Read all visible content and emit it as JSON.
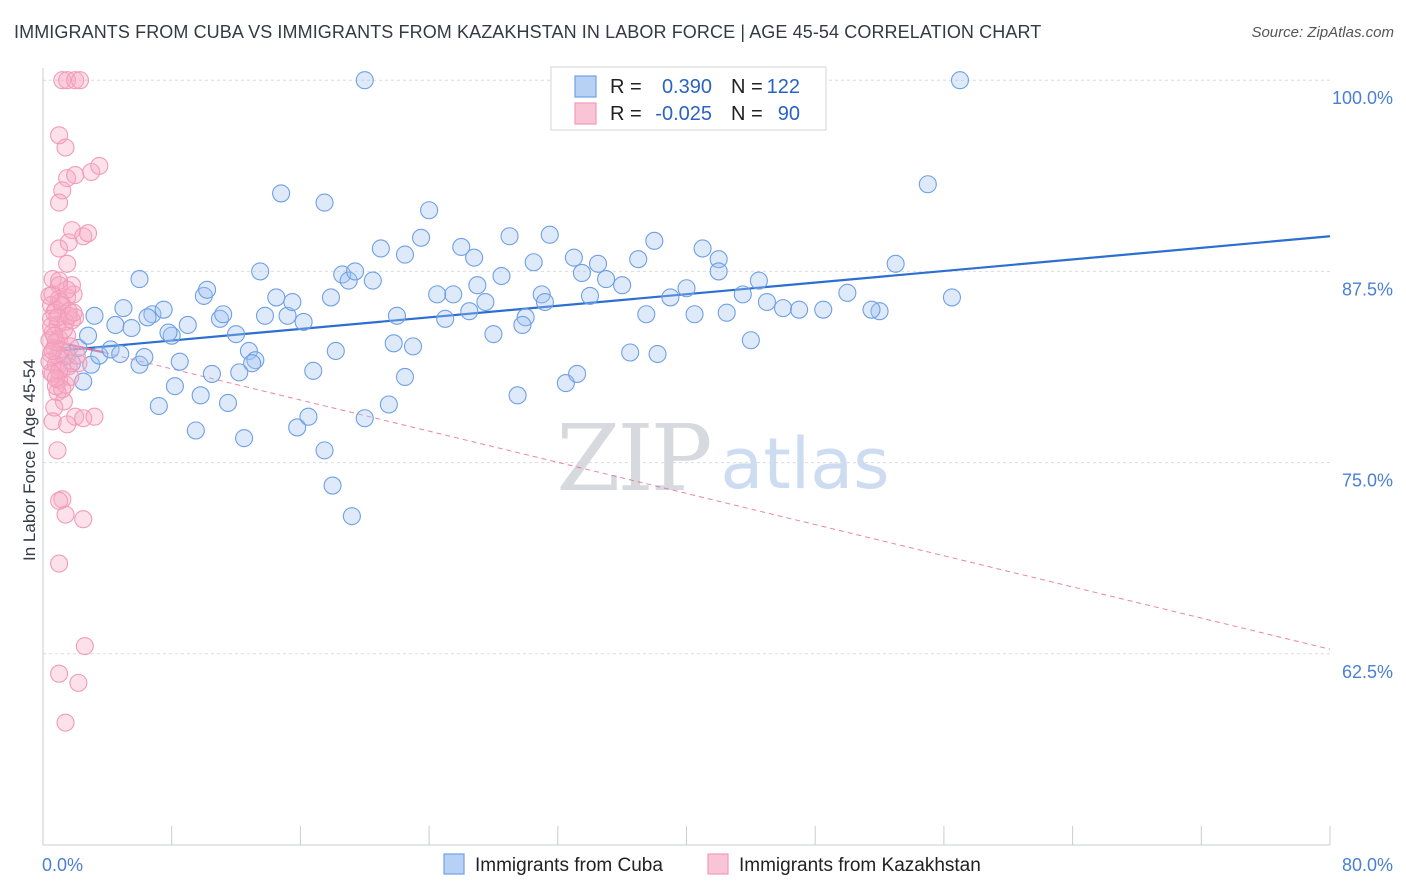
{
  "title": "IMMIGRANTS FROM CUBA VS IMMIGRANTS FROM KAZAKHSTAN IN LABOR FORCE | AGE 45-54 CORRELATION CHART",
  "source": "Source: ZipAtlas.com",
  "watermark": {
    "zip": "ZIP",
    "atlas": "atlas"
  },
  "chart_data": {
    "type": "scatter",
    "title": "IMMIGRANTS FROM CUBA VS IMMIGRANTS FROM KAZAKHSTAN IN LABOR FORCE | AGE 45-54 CORRELATION CHART",
    "xlabel": "",
    "ylabel": "In Labor Force | Age 45-54",
    "xlim": [
      0,
      80
    ],
    "ylim": [
      50,
      100.8
    ],
    "x_tick_labels": [
      "0.0%",
      "80.0%"
    ],
    "y_ticks": [
      62.5,
      75.0,
      87.5,
      100.0
    ],
    "y_tick_labels": [
      "62.5%",
      "75.0%",
      "87.5%",
      "100.0%"
    ],
    "legend": {
      "position": "top-center",
      "entries": [
        {
          "r_label": "R =",
          "r_value": "0.390",
          "n_label": "N =",
          "n_value": "122"
        },
        {
          "r_label": "R =",
          "r_value": "-0.025",
          "n_label": "N =",
          "n_value": "90"
        }
      ]
    },
    "series": [
      {
        "name": "Immigrants from Cuba",
        "color": "#6fa0e6",
        "line_color": "#2c6fd1",
        "trend": {
          "x": [
            0.8,
            80.0
          ],
          "y": [
            82.3,
            89.8
          ]
        },
        "points": [
          [
            1.5,
            82.0
          ],
          [
            2.2,
            82.5
          ],
          [
            1.8,
            81.5
          ],
          [
            3.0,
            81.4
          ],
          [
            2.5,
            80.3
          ],
          [
            3.2,
            84.6
          ],
          [
            3.5,
            82.0
          ],
          [
            4.2,
            82.4
          ],
          [
            4.5,
            84.0
          ],
          [
            5.0,
            85.1
          ],
          [
            5.5,
            83.8
          ],
          [
            6.0,
            81.4
          ],
          [
            6.3,
            81.9
          ],
          [
            6.8,
            84.7
          ],
          [
            7.2,
            78.7
          ],
          [
            7.5,
            85.0
          ],
          [
            8.0,
            83.3
          ],
          [
            8.5,
            81.6
          ],
          [
            9.0,
            84.0
          ],
          [
            9.5,
            77.1
          ],
          [
            10.0,
            85.9
          ],
          [
            10.5,
            80.8
          ],
          [
            11.0,
            84.4
          ],
          [
            11.5,
            78.9
          ],
          [
            12.0,
            83.4
          ],
          [
            12.5,
            76.6
          ],
          [
            12.8,
            82.3
          ],
          [
            13.2,
            81.7
          ],
          [
            13.8,
            84.6
          ],
          [
            14.5,
            85.8
          ],
          [
            15.2,
            84.6
          ],
          [
            15.8,
            77.3
          ],
          [
            16.2,
            84.2
          ],
          [
            16.8,
            81.0
          ],
          [
            17.5,
            75.8
          ],
          [
            17.9,
            85.8
          ],
          [
            18.2,
            82.3
          ],
          [
            18.6,
            87.3
          ],
          [
            19.0,
            86.9
          ],
          [
            19.4,
            87.5
          ],
          [
            20.0,
            77.9
          ],
          [
            20.5,
            86.9
          ],
          [
            21.0,
            89.0
          ],
          [
            21.5,
            78.8
          ],
          [
            22.0,
            84.6
          ],
          [
            22.5,
            80.6
          ],
          [
            23.0,
            82.6
          ],
          [
            23.5,
            89.7
          ],
          [
            24.0,
            91.5
          ],
          [
            25.0,
            84.4
          ],
          [
            25.5,
            86.0
          ],
          [
            26.0,
            89.1
          ],
          [
            26.8,
            88.4
          ],
          [
            27.5,
            85.5
          ],
          [
            28.0,
            83.4
          ],
          [
            28.5,
            87.2
          ],
          [
            29.0,
            89.8
          ],
          [
            29.5,
            79.4
          ],
          [
            30.5,
            88.1
          ],
          [
            31.0,
            86.0
          ],
          [
            31.5,
            89.9
          ],
          [
            32.5,
            80.2
          ],
          [
            33.0,
            88.4
          ],
          [
            33.5,
            87.4
          ],
          [
            34.0,
            85.9
          ],
          [
            34.5,
            88.0
          ],
          [
            35.0,
            87.0
          ],
          [
            36.0,
            86.6
          ],
          [
            37.0,
            88.3
          ],
          [
            37.5,
            84.7
          ],
          [
            38.2,
            82.1
          ],
          [
            39.0,
            85.8
          ],
          [
            40.0,
            86.4
          ],
          [
            40.5,
            84.7
          ],
          [
            41.0,
            89.0
          ],
          [
            42.0,
            88.3
          ],
          [
            42.5,
            84.8
          ],
          [
            43.5,
            86.0
          ],
          [
            44.5,
            86.9
          ],
          [
            46.0,
            85.1
          ],
          [
            47.0,
            85.0
          ],
          [
            50.0,
            86.1
          ],
          [
            52.0,
            84.9
          ],
          [
            56.5,
            85.8
          ],
          [
            30.0,
            84.5
          ],
          [
            20.0,
            100.0
          ],
          [
            57.0,
            100.0
          ],
          [
            55.0,
            93.2
          ],
          [
            14.8,
            92.6
          ],
          [
            17.5,
            92.0
          ],
          [
            6.5,
            84.5
          ],
          [
            8.2,
            80.0
          ],
          [
            11.2,
            84.7
          ],
          [
            13.0,
            81.5
          ],
          [
            15.5,
            85.5
          ],
          [
            16.5,
            78.0
          ],
          [
            18.0,
            73.5
          ],
          [
            19.2,
            71.5
          ],
          [
            21.8,
            82.8
          ],
          [
            24.5,
            86.0
          ],
          [
            27.0,
            86.6
          ],
          [
            29.8,
            84.0
          ],
          [
            33.2,
            80.8
          ],
          [
            36.5,
            82.2
          ],
          [
            44.0,
            83.0
          ],
          [
            48.5,
            85.0
          ],
          [
            51.5,
            85.0
          ],
          [
            53.0,
            88.0
          ],
          [
            6.0,
            87.0
          ],
          [
            10.2,
            86.3
          ],
          [
            13.5,
            87.5
          ],
          [
            22.5,
            88.6
          ],
          [
            26.5,
            84.9
          ],
          [
            31.2,
            85.5
          ],
          [
            38.0,
            89.5
          ],
          [
            42.0,
            87.5
          ],
          [
            45.0,
            85.5
          ],
          [
            2.8,
            83.3
          ],
          [
            4.8,
            82.1
          ],
          [
            7.8,
            83.5
          ],
          [
            9.8,
            79.4
          ],
          [
            12.2,
            80.9
          ]
        ]
      },
      {
        "name": "Immigrants from Kazakhstan",
        "color": "#f29bb8",
        "line_color": "#e8668f",
        "trend": {
          "x": [
            0.4,
            3.8
          ],
          "y": [
            83.0,
            82.2
          ]
        },
        "trend_extension": {
          "x": [
            3.8,
            80.0
          ],
          "y": [
            82.2,
            62.8
          ]
        },
        "points": [
          [
            1.2,
            100.0
          ],
          [
            1.5,
            100.0
          ],
          [
            2.0,
            100.0
          ],
          [
            2.3,
            100.0
          ],
          [
            1.0,
            96.4
          ],
          [
            1.4,
            95.6
          ],
          [
            1.5,
            93.6
          ],
          [
            2.0,
            93.8
          ],
          [
            3.0,
            94.0
          ],
          [
            1.2,
            92.8
          ],
          [
            1.0,
            92.0
          ],
          [
            1.8,
            90.2
          ],
          [
            2.5,
            89.8
          ],
          [
            1.0,
            89.0
          ],
          [
            1.6,
            89.4
          ],
          [
            1.5,
            88.0
          ],
          [
            0.6,
            87.0
          ],
          [
            1.0,
            86.6
          ],
          [
            1.8,
            86.6
          ],
          [
            0.6,
            86.0
          ],
          [
            1.0,
            85.7
          ],
          [
            1.5,
            85.8
          ],
          [
            0.5,
            85.3
          ],
          [
            0.8,
            85.0
          ],
          [
            1.2,
            85.3
          ],
          [
            1.6,
            84.9
          ],
          [
            2.0,
            84.5
          ],
          [
            0.5,
            84.4
          ],
          [
            0.9,
            84.0
          ],
          [
            1.4,
            84.2
          ],
          [
            0.6,
            83.5
          ],
          [
            1.0,
            83.1
          ],
          [
            1.5,
            83.3
          ],
          [
            0.4,
            83.0
          ],
          [
            0.7,
            82.5
          ],
          [
            1.1,
            82.4
          ],
          [
            0.5,
            82.1
          ],
          [
            0.9,
            82.0
          ],
          [
            1.3,
            81.9
          ],
          [
            0.4,
            81.6
          ],
          [
            0.8,
            81.4
          ],
          [
            1.2,
            81.1
          ],
          [
            1.6,
            81.3
          ],
          [
            0.6,
            80.8
          ],
          [
            1.0,
            80.4
          ],
          [
            1.4,
            80.1
          ],
          [
            0.9,
            79.6
          ],
          [
            1.3,
            79.0
          ],
          [
            0.7,
            78.6
          ],
          [
            2.0,
            78.0
          ],
          [
            2.5,
            77.9
          ],
          [
            0.6,
            77.7
          ],
          [
            1.5,
            77.5
          ],
          [
            0.9,
            75.8
          ],
          [
            1.2,
            72.6
          ],
          [
            1.4,
            71.6
          ],
          [
            2.5,
            71.3
          ],
          [
            1.0,
            72.5
          ],
          [
            1.0,
            68.4
          ],
          [
            3.5,
            94.4
          ],
          [
            2.8,
            90.0
          ],
          [
            3.2,
            78.0
          ],
          [
            0.8,
            80.0
          ],
          [
            2.2,
            81.5
          ],
          [
            1.7,
            82.6
          ],
          [
            0.5,
            83.9
          ],
          [
            1.9,
            86.0
          ],
          [
            2.6,
            63.0
          ],
          [
            1.0,
            61.2
          ],
          [
            2.2,
            60.6
          ],
          [
            1.4,
            58.0
          ],
          [
            0.7,
            84.8
          ],
          [
            1.1,
            85.5
          ],
          [
            0.4,
            85.9
          ],
          [
            1.3,
            83.7
          ],
          [
            0.8,
            82.9
          ],
          [
            1.7,
            80.6
          ],
          [
            0.9,
            84.5
          ],
          [
            1.5,
            86.3
          ],
          [
            0.6,
            82.3
          ],
          [
            1.0,
            81.0
          ],
          [
            1.8,
            84.3
          ],
          [
            0.5,
            80.9
          ],
          [
            2.1,
            82.0
          ],
          [
            1.2,
            79.8
          ],
          [
            0.7,
            83.3
          ],
          [
            1.6,
            84.6
          ],
          [
            1.0,
            86.9
          ],
          [
            1.9,
            84.8
          ],
          [
            0.8,
            80.5
          ]
        ]
      }
    ]
  },
  "bottom_legend": [
    {
      "label": "Immigrants from Cuba",
      "fill": "#b7d1f5",
      "stroke": "#6fa0e6"
    },
    {
      "label": "Immigrants from Kazakhstan",
      "fill": "#f9c4d5",
      "stroke": "#f29bb8"
    }
  ]
}
